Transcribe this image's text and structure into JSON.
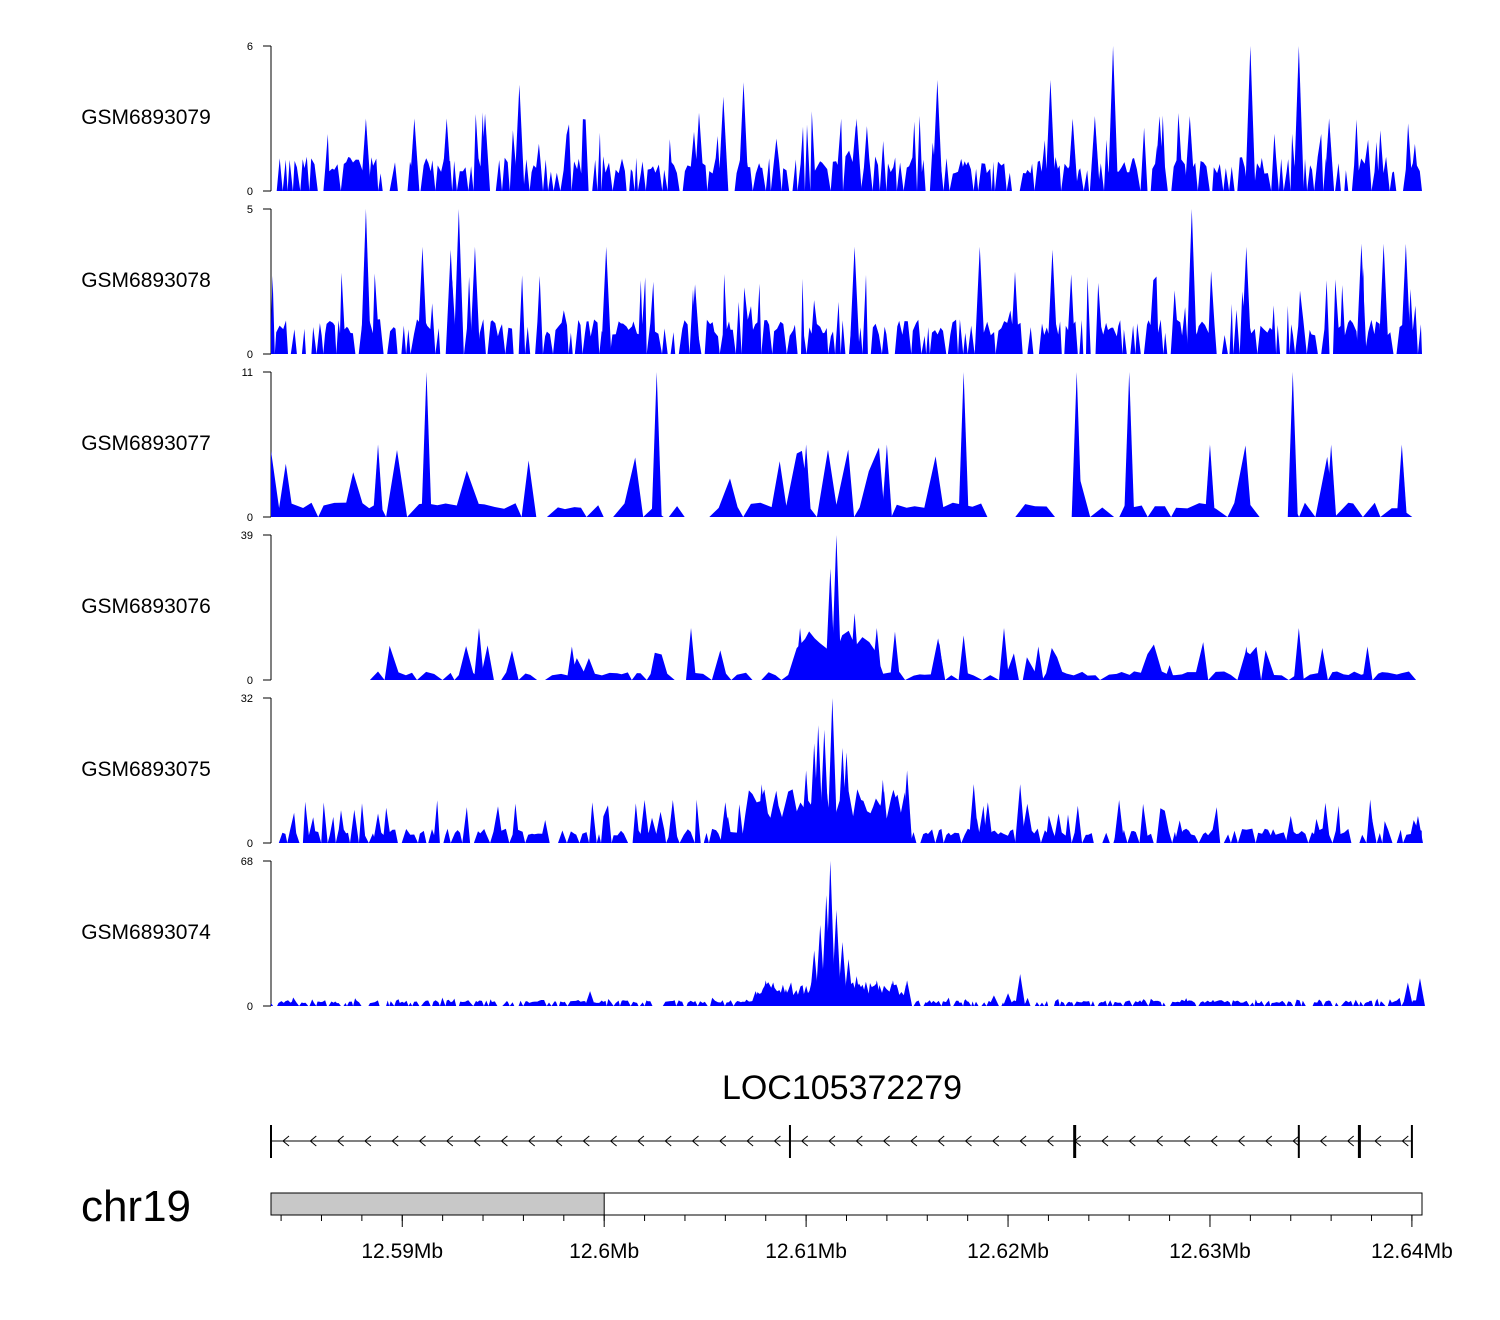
{
  "chart_data": {
    "type": "area",
    "title": "",
    "region": {
      "chromosome": "chr19",
      "start_mb": 12.5835,
      "end_mb": 12.6405
    },
    "colors": {
      "signal": "#0000ff",
      "gene": "#000000",
      "ideogram_band": "#c8c8c8"
    },
    "tracks": [
      {
        "name": "GSM6893079",
        "ymax": 6,
        "ticks": [
          "0",
          "6"
        ],
        "peaks": [
          {
            "x": 12.6059,
            "y": 3.9
          },
          {
            "x": 12.6069,
            "y": 4.5
          },
          {
            "x": 12.5958,
            "y": 4.4
          },
          {
            "x": 12.5941,
            "y": 3.2
          },
          {
            "x": 12.5922,
            "y": 3.0
          },
          {
            "x": 12.6165,
            "y": 4.6
          },
          {
            "x": 12.6221,
            "y": 4.6
          },
          {
            "x": 12.6125,
            "y": 3.0
          },
          {
            "x": 12.6252,
            "y": 6.0
          },
          {
            "x": 12.632,
            "y": 6.0
          },
          {
            "x": 12.6344,
            "y": 6.0
          },
          {
            "x": 12.6232,
            "y": 3.0
          },
          {
            "x": 12.6243,
            "y": 3.1
          },
          {
            "x": 12.6275,
            "y": 3.1
          },
          {
            "x": 12.629,
            "y": 3.1
          },
          {
            "x": 12.6359,
            "y": 3.0
          },
          {
            "x": 12.5882,
            "y": 3.0
          },
          {
            "x": 12.5906,
            "y": 3.0
          }
        ]
      },
      {
        "name": "GSM6893078",
        "ymax": 5,
        "ticks": [
          "0",
          "5"
        ],
        "peaks": [
          {
            "x": 12.5882,
            "y": 5.0
          },
          {
            "x": 12.5928,
            "y": 5.0
          },
          {
            "x": 12.591,
            "y": 3.7
          },
          {
            "x": 12.5936,
            "y": 3.7
          },
          {
            "x": 12.5924,
            "y": 3.6
          },
          {
            "x": 12.6001,
            "y": 3.7
          },
          {
            "x": 12.6124,
            "y": 3.7
          },
          {
            "x": 12.6186,
            "y": 3.7
          },
          {
            "x": 12.6222,
            "y": 3.6
          },
          {
            "x": 12.6291,
            "y": 5.0
          },
          {
            "x": 12.6318,
            "y": 3.7
          },
          {
            "x": 12.6375,
            "y": 3.8
          },
          {
            "x": 12.6386,
            "y": 3.8
          },
          {
            "x": 12.6397,
            "y": 3.8
          },
          {
            "x": 12.6045,
            "y": 2.4
          }
        ]
      },
      {
        "name": "GSM6893077",
        "ymax": 11,
        "ticks": [
          "0",
          "11"
        ],
        "peaks": [
          {
            "x": 12.5912,
            "y": 11.0
          },
          {
            "x": 12.6026,
            "y": 11.0
          },
          {
            "x": 12.6178,
            "y": 11.0
          },
          {
            "x": 12.6234,
            "y": 11.0
          },
          {
            "x": 12.626,
            "y": 11.0
          },
          {
            "x": 12.6341,
            "y": 11.0
          },
          {
            "x": 12.5888,
            "y": 5.5
          },
          {
            "x": 12.61,
            "y": 5.5
          },
          {
            "x": 12.614,
            "y": 5.5
          },
          {
            "x": 12.63,
            "y": 5.5
          },
          {
            "x": 12.636,
            "y": 5.5
          },
          {
            "x": 12.6395,
            "y": 5.5
          }
        ]
      },
      {
        "name": "GSM6893076",
        "ymax": 39,
        "ticks": [
          "0",
          "39"
        ],
        "peaks": [
          {
            "x": 12.6115,
            "y": 39.0
          },
          {
            "x": 12.6112,
            "y": 30.0
          },
          {
            "x": 12.6124,
            "y": 18.0
          },
          {
            "x": 12.6097,
            "y": 14.0
          },
          {
            "x": 12.5938,
            "y": 14.0
          },
          {
            "x": 12.6043,
            "y": 14.0
          },
          {
            "x": 12.6135,
            "y": 14.0
          },
          {
            "x": 12.6144,
            "y": 13.0
          },
          {
            "x": 12.6198,
            "y": 14.0
          },
          {
            "x": 12.6215,
            "y": 9.0
          },
          {
            "x": 12.628,
            "y": 4.0
          },
          {
            "x": 12.6344,
            "y": 14.0
          },
          {
            "x": 12.6318,
            "y": 9.0
          },
          {
            "x": 12.6378,
            "y": 9.0
          },
          {
            "x": 12.5984,
            "y": 9.0
          },
          {
            "x": 12.6166,
            "y": 10.0
          },
          {
            "x": 12.6178,
            "y": 12.0
          }
        ]
      },
      {
        "name": "GSM6893075",
        "ymax": 32,
        "ticks": [
          "0",
          "32"
        ],
        "peaks": [
          {
            "x": 12.6113,
            "y": 32.0
          },
          {
            "x": 12.6109,
            "y": 25.0
          },
          {
            "x": 12.6106,
            "y": 26.0
          },
          {
            "x": 12.612,
            "y": 20.0
          },
          {
            "x": 12.6118,
            "y": 21.0
          },
          {
            "x": 12.61,
            "y": 16.0
          },
          {
            "x": 12.615,
            "y": 16.0
          },
          {
            "x": 12.6138,
            "y": 14.0
          },
          {
            "x": 12.6183,
            "y": 13.0
          },
          {
            "x": 12.6206,
            "y": 13.0
          },
          {
            "x": 12.619,
            "y": 9.0
          },
          {
            "x": 12.6078,
            "y": 13.0
          },
          {
            "x": 12.606,
            "y": 9.0
          },
          {
            "x": 12.6104,
            "y": 22.0
          },
          {
            "x": 12.602,
            "y": 9.5
          },
          {
            "x": 12.6034,
            "y": 9.5
          },
          {
            "x": 12.6255,
            "y": 9.5
          },
          {
            "x": 12.6285,
            "y": 5.0
          },
          {
            "x": 12.5888,
            "y": 6.5
          },
          {
            "x": 12.6225,
            "y": 6.5
          },
          {
            "x": 12.634,
            "y": 6.0
          },
          {
            "x": 12.638,
            "y": 6.0
          },
          {
            "x": 12.6403,
            "y": 6.0
          }
        ]
      },
      {
        "name": "GSM6893074",
        "ymax": 68,
        "ticks": [
          "0",
          "68"
        ],
        "peaks": [
          {
            "x": 12.6112,
            "y": 68.0
          },
          {
            "x": 12.611,
            "y": 52.0
          },
          {
            "x": 12.6115,
            "y": 45.0
          },
          {
            "x": 12.6107,
            "y": 38.0
          },
          {
            "x": 12.6118,
            "y": 30.0
          },
          {
            "x": 12.6104,
            "y": 26.0
          },
          {
            "x": 12.6121,
            "y": 22.0
          },
          {
            "x": 12.6125,
            "y": 14.0
          },
          {
            "x": 12.6135,
            "y": 12.0
          },
          {
            "x": 12.6143,
            "y": 12.0
          },
          {
            "x": 12.615,
            "y": 12.0
          },
          {
            "x": 12.608,
            "y": 12.0
          },
          {
            "x": 12.609,
            "y": 8.0
          },
          {
            "x": 12.6075,
            "y": 7.0
          },
          {
            "x": 12.6206,
            "y": 15.0
          },
          {
            "x": 12.62,
            "y": 6.0
          },
          {
            "x": 12.6193,
            "y": 5.0
          },
          {
            "x": 12.5993,
            "y": 7.0
          },
          {
            "x": 12.6404,
            "y": 13.0
          },
          {
            "x": 12.6398,
            "y": 11.0
          }
        ]
      }
    ],
    "gene": {
      "name": "LOC105372279",
      "strand": "-",
      "start_mb": 12.5835,
      "end_mb": 12.64,
      "exons_mb": [
        12.5835,
        12.6092,
        12.6233,
        12.6344,
        12.6374,
        12.64
      ]
    },
    "xaxis": {
      "ticks": [
        12.59,
        12.6,
        12.61,
        12.62,
        12.63,
        12.64
      ],
      "tick_labels": [
        "12.59Mb",
        "12.6Mb",
        "12.61Mb",
        "12.62Mb",
        "12.63Mb",
        "12.64Mb"
      ],
      "minor_step_mb": 0.002
    },
    "ideogram": {
      "band_start_mb": 12.5835,
      "band_end_mb": 12.6
    }
  }
}
